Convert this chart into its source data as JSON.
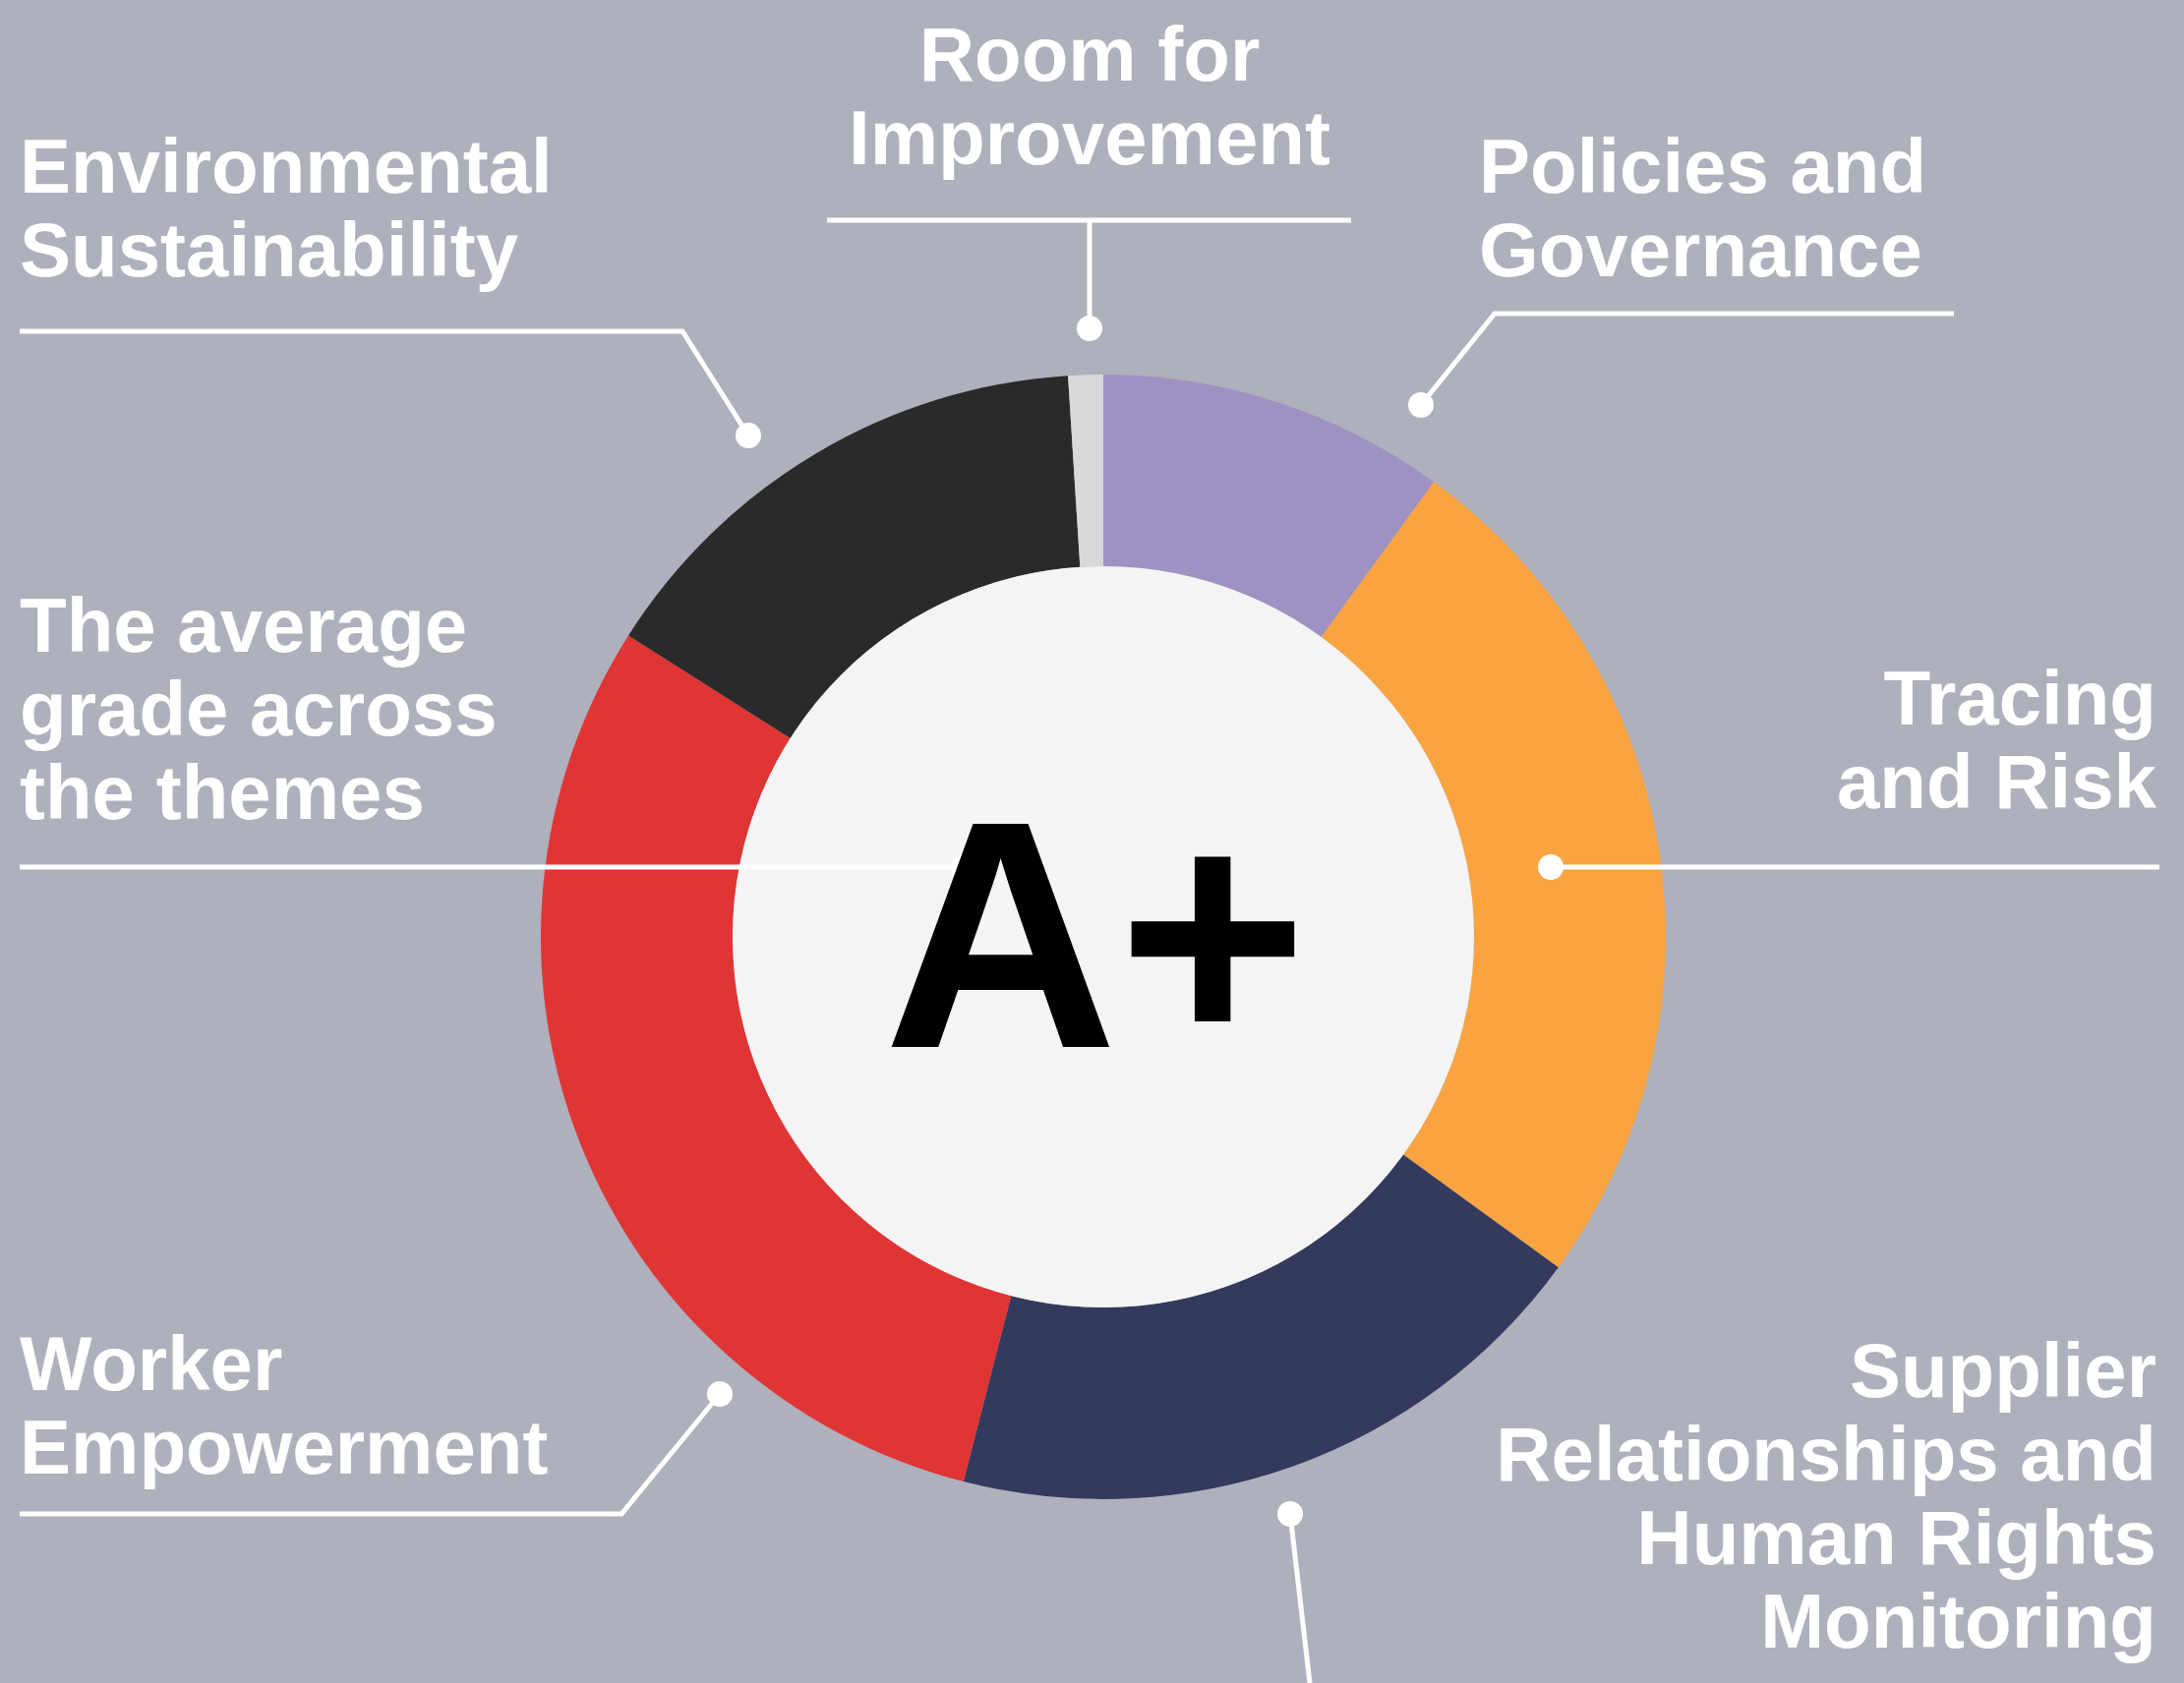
{
  "chart_data": {
    "type": "donut",
    "categories": [
      "Policies and Governance",
      "Tracing and Risk",
      "Supplier Relationships and Human Rights Monitoring",
      "Worker Empowerment",
      "Environmental Sustainability",
      "Room for Improvement"
    ],
    "values": [
      10,
      25,
      19,
      30,
      15,
      1
    ],
    "colors": [
      "#9f92c2",
      "#f9a441",
      "#343a5e",
      "#e03535",
      "#2a2a2a",
      "#d9d9d9"
    ],
    "annotations": [
      "The average grade across the themes",
      "A+"
    ]
  }
}
